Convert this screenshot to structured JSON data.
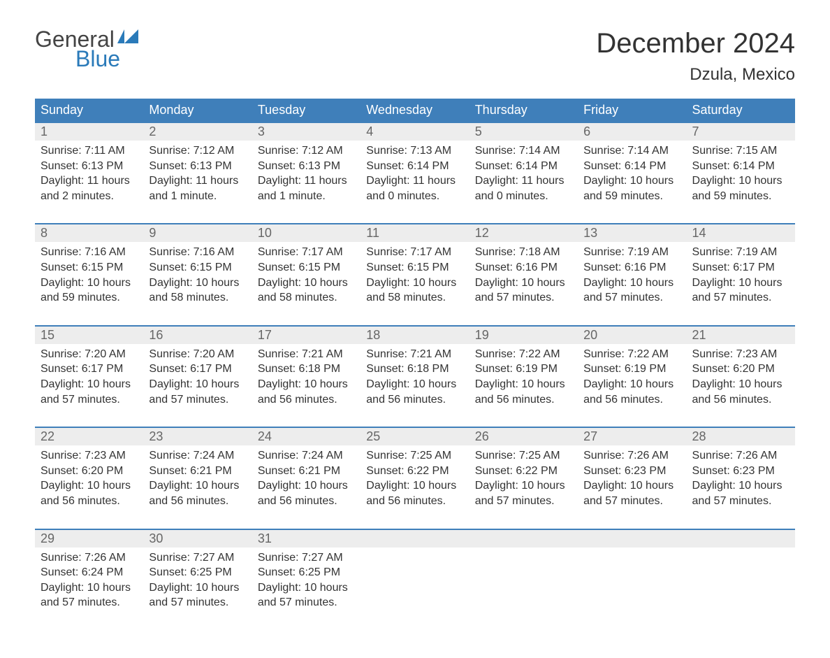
{
  "brand": {
    "text_general": "General",
    "text_blue": "Blue",
    "flag_color": "#2a7ab9",
    "text_general_color": "#444444"
  },
  "title": "December 2024",
  "location": "Dzula, Mexico",
  "colors": {
    "header_bg": "#3f7fba",
    "header_text": "#ffffff",
    "daynum_bg": "#ededed",
    "daynum_text": "#666666",
    "body_text": "#333333",
    "page_bg": "#ffffff",
    "week_border": "#3f7fba"
  },
  "fonts": {
    "title_size_pt": 30,
    "location_size_pt": 18,
    "dow_size_pt": 14,
    "daynum_size_pt": 14,
    "body_size_pt": 12,
    "logo_size_pt": 24
  },
  "days_of_week": [
    "Sunday",
    "Monday",
    "Tuesday",
    "Wednesday",
    "Thursday",
    "Friday",
    "Saturday"
  ],
  "weeks": [
    [
      {
        "num": "1",
        "sunrise": "Sunrise: 7:11 AM",
        "sunset": "Sunset: 6:13 PM",
        "daylight": "Daylight: 11 hours and 2 minutes."
      },
      {
        "num": "2",
        "sunrise": "Sunrise: 7:12 AM",
        "sunset": "Sunset: 6:13 PM",
        "daylight": "Daylight: 11 hours and 1 minute."
      },
      {
        "num": "3",
        "sunrise": "Sunrise: 7:12 AM",
        "sunset": "Sunset: 6:13 PM",
        "daylight": "Daylight: 11 hours and 1 minute."
      },
      {
        "num": "4",
        "sunrise": "Sunrise: 7:13 AM",
        "sunset": "Sunset: 6:14 PM",
        "daylight": "Daylight: 11 hours and 0 minutes."
      },
      {
        "num": "5",
        "sunrise": "Sunrise: 7:14 AM",
        "sunset": "Sunset: 6:14 PM",
        "daylight": "Daylight: 11 hours and 0 minutes."
      },
      {
        "num": "6",
        "sunrise": "Sunrise: 7:14 AM",
        "sunset": "Sunset: 6:14 PM",
        "daylight": "Daylight: 10 hours and 59 minutes."
      },
      {
        "num": "7",
        "sunrise": "Sunrise: 7:15 AM",
        "sunset": "Sunset: 6:14 PM",
        "daylight": "Daylight: 10 hours and 59 minutes."
      }
    ],
    [
      {
        "num": "8",
        "sunrise": "Sunrise: 7:16 AM",
        "sunset": "Sunset: 6:15 PM",
        "daylight": "Daylight: 10 hours and 59 minutes."
      },
      {
        "num": "9",
        "sunrise": "Sunrise: 7:16 AM",
        "sunset": "Sunset: 6:15 PM",
        "daylight": "Daylight: 10 hours and 58 minutes."
      },
      {
        "num": "10",
        "sunrise": "Sunrise: 7:17 AM",
        "sunset": "Sunset: 6:15 PM",
        "daylight": "Daylight: 10 hours and 58 minutes."
      },
      {
        "num": "11",
        "sunrise": "Sunrise: 7:17 AM",
        "sunset": "Sunset: 6:15 PM",
        "daylight": "Daylight: 10 hours and 58 minutes."
      },
      {
        "num": "12",
        "sunrise": "Sunrise: 7:18 AM",
        "sunset": "Sunset: 6:16 PM",
        "daylight": "Daylight: 10 hours and 57 minutes."
      },
      {
        "num": "13",
        "sunrise": "Sunrise: 7:19 AM",
        "sunset": "Sunset: 6:16 PM",
        "daylight": "Daylight: 10 hours and 57 minutes."
      },
      {
        "num": "14",
        "sunrise": "Sunrise: 7:19 AM",
        "sunset": "Sunset: 6:17 PM",
        "daylight": "Daylight: 10 hours and 57 minutes."
      }
    ],
    [
      {
        "num": "15",
        "sunrise": "Sunrise: 7:20 AM",
        "sunset": "Sunset: 6:17 PM",
        "daylight": "Daylight: 10 hours and 57 minutes."
      },
      {
        "num": "16",
        "sunrise": "Sunrise: 7:20 AM",
        "sunset": "Sunset: 6:17 PM",
        "daylight": "Daylight: 10 hours and 57 minutes."
      },
      {
        "num": "17",
        "sunrise": "Sunrise: 7:21 AM",
        "sunset": "Sunset: 6:18 PM",
        "daylight": "Daylight: 10 hours and 56 minutes."
      },
      {
        "num": "18",
        "sunrise": "Sunrise: 7:21 AM",
        "sunset": "Sunset: 6:18 PM",
        "daylight": "Daylight: 10 hours and 56 minutes."
      },
      {
        "num": "19",
        "sunrise": "Sunrise: 7:22 AM",
        "sunset": "Sunset: 6:19 PM",
        "daylight": "Daylight: 10 hours and 56 minutes."
      },
      {
        "num": "20",
        "sunrise": "Sunrise: 7:22 AM",
        "sunset": "Sunset: 6:19 PM",
        "daylight": "Daylight: 10 hours and 56 minutes."
      },
      {
        "num": "21",
        "sunrise": "Sunrise: 7:23 AM",
        "sunset": "Sunset: 6:20 PM",
        "daylight": "Daylight: 10 hours and 56 minutes."
      }
    ],
    [
      {
        "num": "22",
        "sunrise": "Sunrise: 7:23 AM",
        "sunset": "Sunset: 6:20 PM",
        "daylight": "Daylight: 10 hours and 56 minutes."
      },
      {
        "num": "23",
        "sunrise": "Sunrise: 7:24 AM",
        "sunset": "Sunset: 6:21 PM",
        "daylight": "Daylight: 10 hours and 56 minutes."
      },
      {
        "num": "24",
        "sunrise": "Sunrise: 7:24 AM",
        "sunset": "Sunset: 6:21 PM",
        "daylight": "Daylight: 10 hours and 56 minutes."
      },
      {
        "num": "25",
        "sunrise": "Sunrise: 7:25 AM",
        "sunset": "Sunset: 6:22 PM",
        "daylight": "Daylight: 10 hours and 56 minutes."
      },
      {
        "num": "26",
        "sunrise": "Sunrise: 7:25 AM",
        "sunset": "Sunset: 6:22 PM",
        "daylight": "Daylight: 10 hours and 57 minutes."
      },
      {
        "num": "27",
        "sunrise": "Sunrise: 7:26 AM",
        "sunset": "Sunset: 6:23 PM",
        "daylight": "Daylight: 10 hours and 57 minutes."
      },
      {
        "num": "28",
        "sunrise": "Sunrise: 7:26 AM",
        "sunset": "Sunset: 6:23 PM",
        "daylight": "Daylight: 10 hours and 57 minutes."
      }
    ],
    [
      {
        "num": "29",
        "sunrise": "Sunrise: 7:26 AM",
        "sunset": "Sunset: 6:24 PM",
        "daylight": "Daylight: 10 hours and 57 minutes."
      },
      {
        "num": "30",
        "sunrise": "Sunrise: 7:27 AM",
        "sunset": "Sunset: 6:25 PM",
        "daylight": "Daylight: 10 hours and 57 minutes."
      },
      {
        "num": "31",
        "sunrise": "Sunrise: 7:27 AM",
        "sunset": "Sunset: 6:25 PM",
        "daylight": "Daylight: 10 hours and 57 minutes."
      },
      null,
      null,
      null,
      null
    ]
  ]
}
